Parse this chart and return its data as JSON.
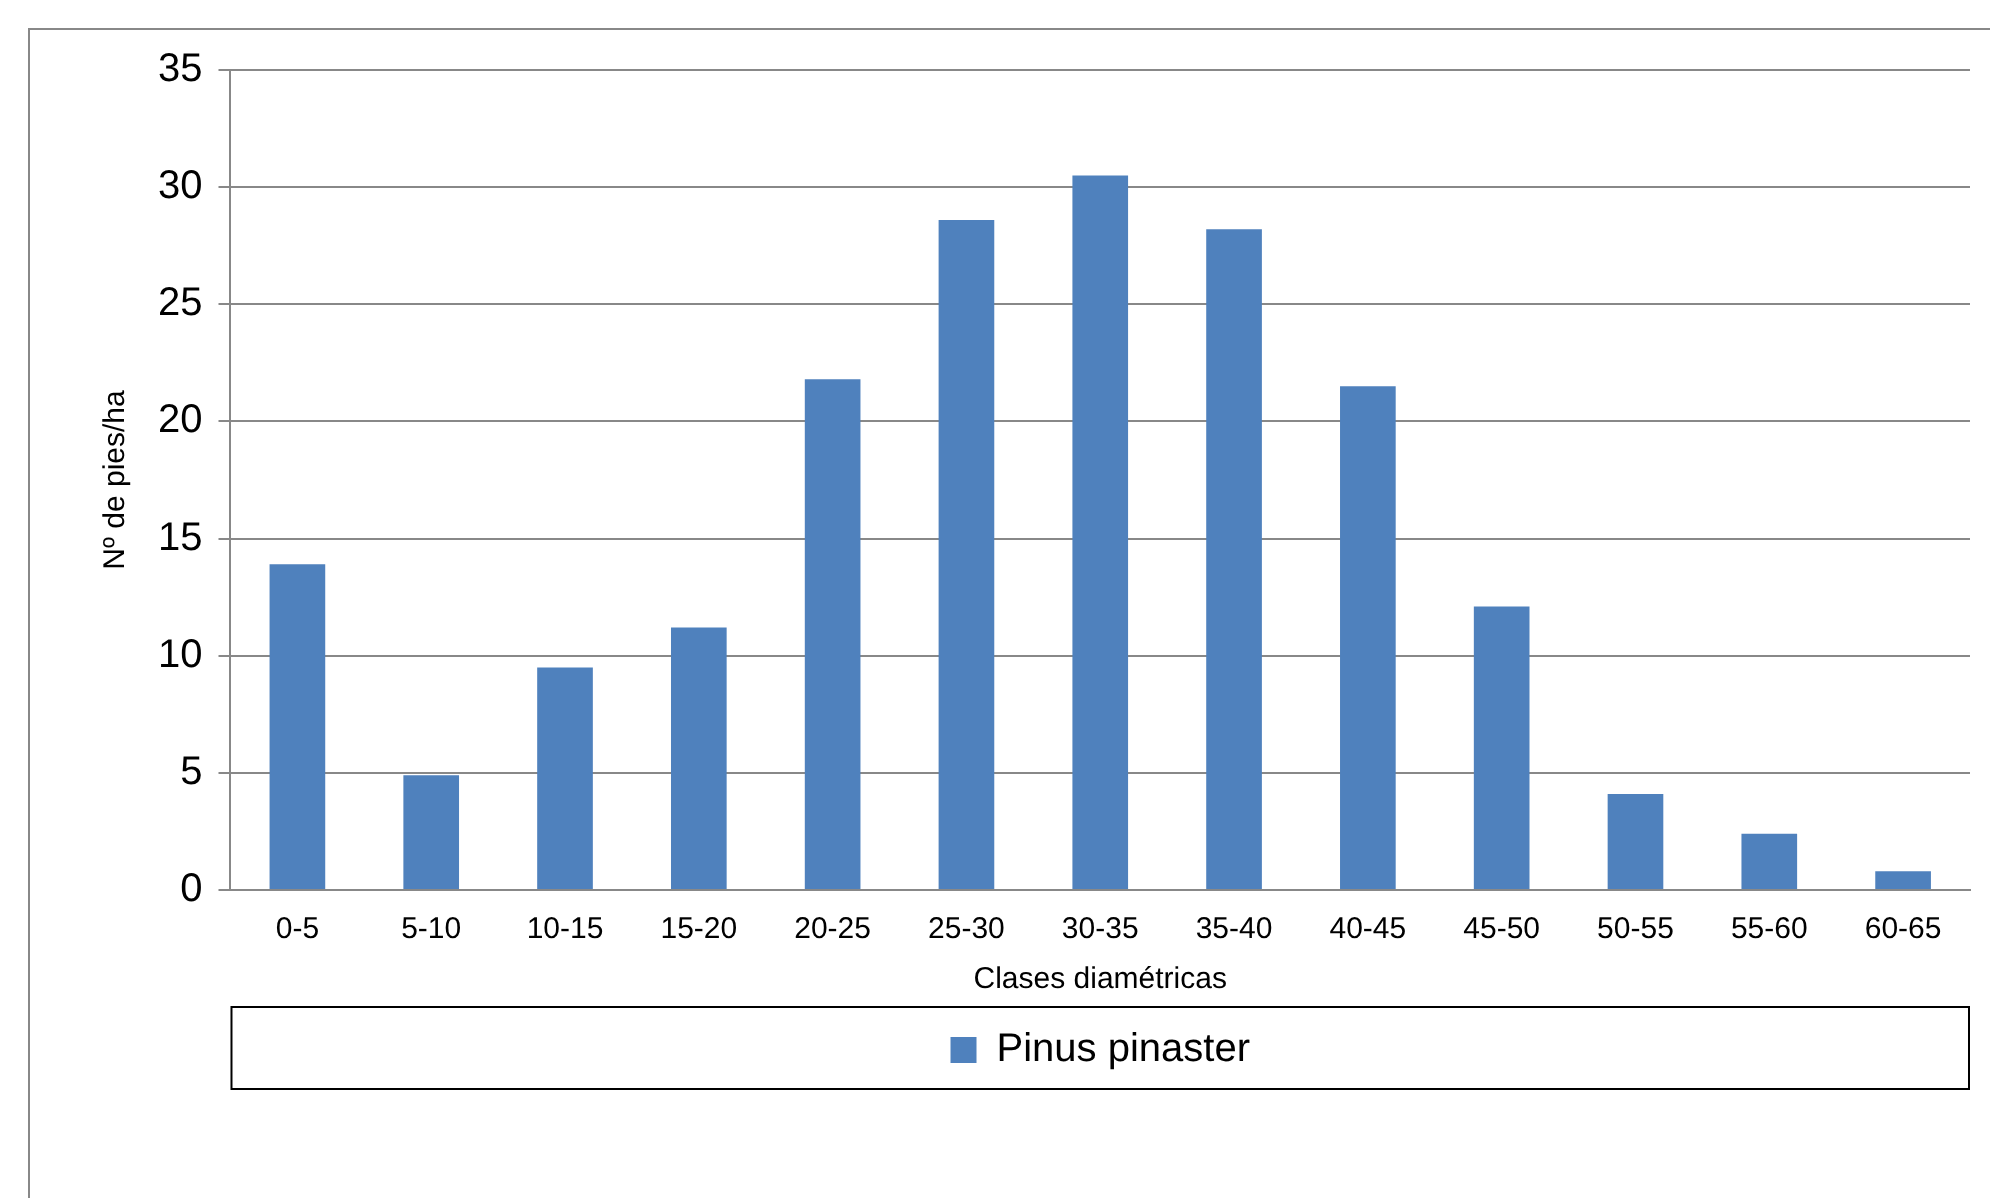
{
  "chart_data": {
    "type": "bar",
    "xlabel": "Clases diamétricas",
    "ylabel": "Nº de pies/ha",
    "categories": [
      "0-5",
      "5-10",
      "10-15",
      "15-20",
      "20-25",
      "25-30",
      "30-35",
      "35-40",
      "40-45",
      "45-50",
      "50-55",
      "55-60",
      "60-65"
    ],
    "series": [
      {
        "name": "Pinus pinaster",
        "color": "#4f81bd",
        "values": [
          13.9,
          4.9,
          9.5,
          11.2,
          21.8,
          28.6,
          30.5,
          28.2,
          21.5,
          12.1,
          4.1,
          2.4,
          0.8
        ]
      }
    ],
    "ylim": [
      0,
      35
    ],
    "yticks": [
      0,
      5,
      10,
      15,
      20,
      25,
      30,
      35
    ],
    "grid": "y",
    "legend": "bottom"
  }
}
